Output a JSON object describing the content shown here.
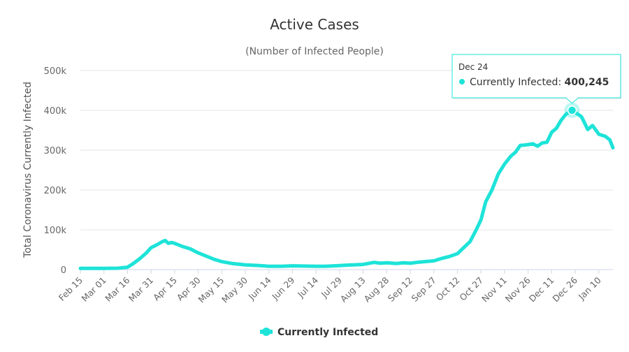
{
  "chart_data": {
    "type": "line",
    "title": "Active Cases",
    "subtitle": "(Number of Infected People)",
    "ylabel": "Total Coronavirus Currently Infected",
    "ylim": [
      0,
      500000
    ],
    "yticks": [
      0,
      100000,
      200000,
      300000,
      400000,
      500000
    ],
    "ytick_labels": [
      "0",
      "100k",
      "200k",
      "300k",
      "400k",
      "500k"
    ],
    "xlim": [
      "2020-02-15",
      "2021-01-19"
    ],
    "xticks": [
      "2020-02-15",
      "2020-03-01",
      "2020-03-16",
      "2020-03-31",
      "2020-04-15",
      "2020-04-30",
      "2020-05-15",
      "2020-05-30",
      "2020-06-14",
      "2020-06-29",
      "2020-07-14",
      "2020-07-29",
      "2020-08-13",
      "2020-08-28",
      "2020-09-12",
      "2020-09-27",
      "2020-10-12",
      "2020-10-27",
      "2020-11-11",
      "2020-11-26",
      "2020-12-11",
      "2020-12-26",
      "2021-01-10"
    ],
    "xtick_labels": [
      "Feb 15",
      "Mar 01",
      "Mar 16",
      "Mar 31",
      "Apr 15",
      "Apr 30",
      "May 15",
      "May 30",
      "Jun 14",
      "Jun 29",
      "Jul 14",
      "Jul 29",
      "Aug 13",
      "Aug 28",
      "Sep 12",
      "Sep 27",
      "Oct 12",
      "Oct 27",
      "Nov 11",
      "Nov 26",
      "Dec 11",
      "Dec 26",
      "Jan 10"
    ],
    "grid": true,
    "legend_position": "bottom-center",
    "series": [
      {
        "name": "Currently Infected",
        "color": "#1ee3d8",
        "points": [
          [
            "2020-02-15",
            3000
          ],
          [
            "2020-03-01",
            3000
          ],
          [
            "2020-03-10",
            3500
          ],
          [
            "2020-03-16",
            6000
          ],
          [
            "2020-03-20",
            16000
          ],
          [
            "2020-03-24",
            28000
          ],
          [
            "2020-03-28",
            42000
          ],
          [
            "2020-03-31",
            55000
          ],
          [
            "2020-04-04",
            63000
          ],
          [
            "2020-04-07",
            70000
          ],
          [
            "2020-04-09",
            73000
          ],
          [
            "2020-04-11",
            66000
          ],
          [
            "2020-04-13",
            68000
          ],
          [
            "2020-04-15",
            66000
          ],
          [
            "2020-04-20",
            58000
          ],
          [
            "2020-04-25",
            52000
          ],
          [
            "2020-04-30",
            42000
          ],
          [
            "2020-05-05",
            34000
          ],
          [
            "2020-05-10",
            26000
          ],
          [
            "2020-05-15",
            20000
          ],
          [
            "2020-05-22",
            15000
          ],
          [
            "2020-05-30",
            12000
          ],
          [
            "2020-06-08",
            10000
          ],
          [
            "2020-06-14",
            8500
          ],
          [
            "2020-06-22",
            8500
          ],
          [
            "2020-06-29",
            9500
          ],
          [
            "2020-07-05",
            9000
          ],
          [
            "2020-07-14",
            8500
          ],
          [
            "2020-07-20",
            8500
          ],
          [
            "2020-07-29",
            10000
          ],
          [
            "2020-08-05",
            11500
          ],
          [
            "2020-08-13",
            13000
          ],
          [
            "2020-08-20",
            18000
          ],
          [
            "2020-08-24",
            16000
          ],
          [
            "2020-08-28",
            17000
          ],
          [
            "2020-09-03",
            15500
          ],
          [
            "2020-09-08",
            17000
          ],
          [
            "2020-09-12",
            16000
          ],
          [
            "2020-09-18",
            19000
          ],
          [
            "2020-09-27",
            22000
          ],
          [
            "2020-10-02",
            28000
          ],
          [
            "2020-10-07",
            33000
          ],
          [
            "2020-10-12",
            40000
          ],
          [
            "2020-10-16",
            55000
          ],
          [
            "2020-10-20",
            70000
          ],
          [
            "2020-10-24",
            100000
          ],
          [
            "2020-10-27",
            125000
          ],
          [
            "2020-10-30",
            170000
          ],
          [
            "2020-11-03",
            200000
          ],
          [
            "2020-11-07",
            240000
          ],
          [
            "2020-11-11",
            265000
          ],
          [
            "2020-11-15",
            285000
          ],
          [
            "2020-11-18",
            295000
          ],
          [
            "2020-11-21",
            312000
          ],
          [
            "2020-11-24",
            313000
          ],
          [
            "2020-11-26",
            314000
          ],
          [
            "2020-11-29",
            316000
          ],
          [
            "2020-12-02",
            310000
          ],
          [
            "2020-12-05",
            318000
          ],
          [
            "2020-12-08",
            320000
          ],
          [
            "2020-12-11",
            345000
          ],
          [
            "2020-12-14",
            355000
          ],
          [
            "2020-12-17",
            375000
          ],
          [
            "2020-12-20",
            390000
          ],
          [
            "2020-12-24",
            400245
          ],
          [
            "2020-12-27",
            392000
          ],
          [
            "2020-12-30",
            384000
          ],
          [
            "2021-01-03",
            352000
          ],
          [
            "2021-01-06",
            362000
          ],
          [
            "2021-01-10",
            340000
          ],
          [
            "2021-01-14",
            335000
          ],
          [
            "2021-01-17",
            326000
          ],
          [
            "2021-01-19",
            306000
          ]
        ]
      }
    ],
    "tooltip": {
      "date": "Dec 24",
      "series_name": "Currently Infected",
      "value": 400245,
      "value_label": "400,245"
    }
  }
}
